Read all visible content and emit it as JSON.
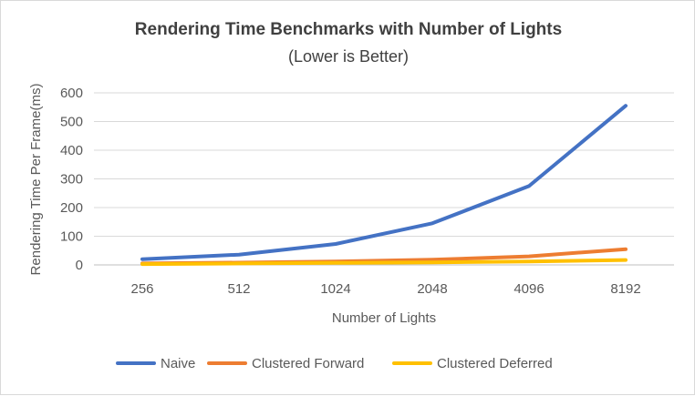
{
  "chart_data": {
    "type": "line",
    "title": "Rendering Time Benchmarks with Number of Lights",
    "subtitle": "(Lower is Better)",
    "xlabel": "Number of Lights",
    "ylabel": "Rendering Time Per Frame(ms)",
    "categories": [
      "256",
      "512",
      "1024",
      "2048",
      "4096",
      "8192"
    ],
    "ylim": [
      0,
      600
    ],
    "yticks": [
      0,
      100,
      200,
      300,
      400,
      500,
      600
    ],
    "grid": true,
    "legend": "bottom",
    "series": [
      {
        "name": "Naive",
        "color": "#4472C4",
        "values": [
          20,
          36,
          73,
          145,
          275,
          555
        ]
      },
      {
        "name": "Clustered Forward",
        "color": "#ED7D31",
        "values": [
          5,
          8,
          12,
          18,
          30,
          55
        ]
      },
      {
        "name": "Clustered Deferred",
        "color": "#FFC000",
        "values": [
          3,
          5,
          7,
          9,
          12,
          17
        ]
      }
    ]
  }
}
